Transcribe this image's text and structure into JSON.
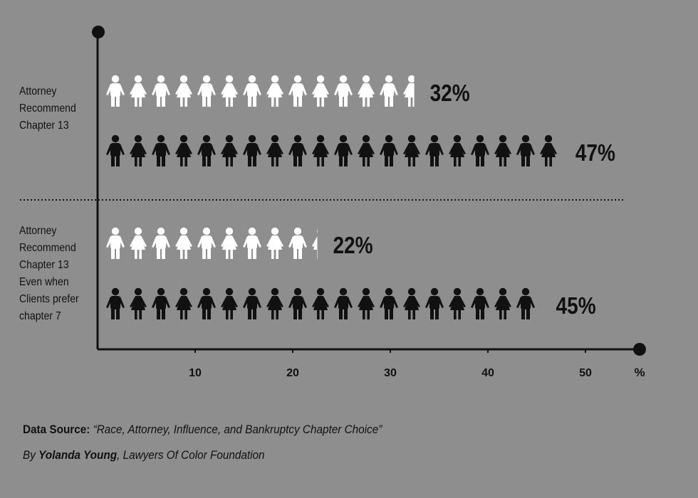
{
  "chart_data": {
    "type": "bar",
    "unit_label": "%",
    "xlim": [
      0,
      50
    ],
    "x_ticks": [
      "10",
      "20",
      "30",
      "40",
      "50"
    ],
    "groups": [
      {
        "label": "Attorney\nRecommend\nChapter 13",
        "bars": [
          {
            "value": 32,
            "value_label": "32%",
            "color": "#ffffff"
          },
          {
            "value": 47,
            "value_label": "47%",
            "color": "#111111"
          }
        ]
      },
      {
        "label": "Attorney\nRecommend\nChapter 13\nEven when\nClients prefer\nchapter 7",
        "bars": [
          {
            "value": 22,
            "value_label": "22%",
            "color": "#ffffff"
          },
          {
            "value": 45,
            "value_label": "45%",
            "color": "#111111"
          }
        ]
      }
    ]
  },
  "source": {
    "prefix": "Data Source:",
    "title": "“Race, Attorney, Influence, and Bankruptcy Chapter Choice”",
    "by": "By",
    "author": "Yolanda Young",
    "org": ", Lawyers Of Color Foundation"
  },
  "colors": {
    "background": "#8e8e8e",
    "ink": "#111111",
    "light": "#ffffff"
  }
}
